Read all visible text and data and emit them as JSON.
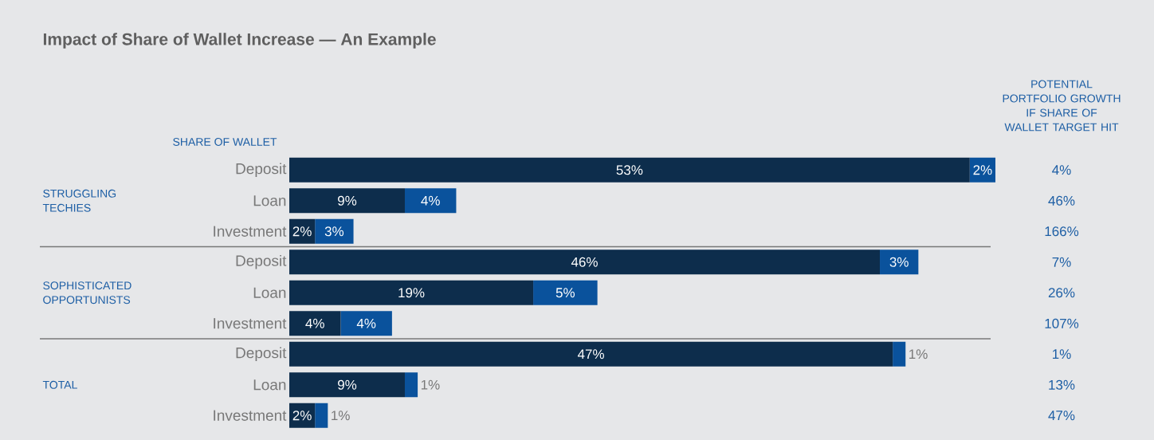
{
  "chart_data": {
    "type": "bar",
    "orientation": "horizontal",
    "stacked": true,
    "title": "Impact of Share of Wallet Increase — An Example",
    "categories": [
      "Deposit",
      "Loan",
      "Investment",
      "Deposit",
      "Loan",
      "Investment",
      "Deposit",
      "Loan",
      "Investment"
    ],
    "series": [
      {
        "color": "#0d2d4c",
        "values": [
          53,
          9,
          2,
          46,
          19,
          4,
          47,
          9,
          2
        ],
        "value_labels": [
          "53%",
          "9%",
          "2%",
          "46%",
          "19%",
          "4%",
          "47%",
          "9%",
          "2%"
        ]
      },
      {
        "color": "#0a529c",
        "values": [
          2,
          4,
          3,
          3,
          5,
          4,
          1,
          1,
          1
        ],
        "value_labels": [
          "2%",
          "4%",
          "3%",
          "3%",
          "5%",
          "4%",
          "1%",
          "1%",
          "1%"
        ]
      }
    ],
    "xlim": [
      0,
      55
    ],
    "tick_labels": "y",
    "annotations": [
      "STRUGGLING TECHIES",
      "SOPHISTICATED OPPORTUNISTS",
      "TOTAL",
      "SHARE OF WALLET",
      "POTENTIAL PORTFOLIO GROWTH IF SHARE OF WALLET TARGET HIT",
      "4%",
      "46%",
      "166%",
      "7%",
      "26%",
      "107%",
      "1%",
      "13%",
      "47%"
    ]
  }
}
